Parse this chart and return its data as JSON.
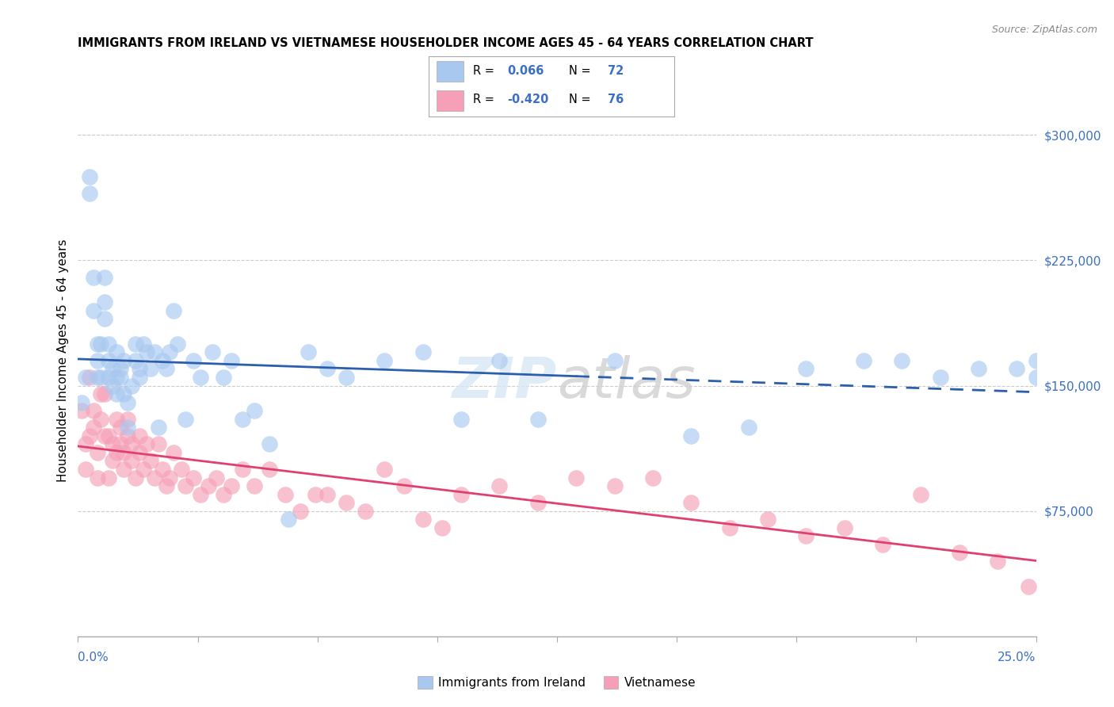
{
  "title": "IMMIGRANTS FROM IRELAND VS VIETNAMESE HOUSEHOLDER INCOME AGES 45 - 64 YEARS CORRELATION CHART",
  "source": "Source: ZipAtlas.com",
  "ylabel": "Householder Income Ages 45 - 64 years",
  "ytick_labels": [
    "$75,000",
    "$150,000",
    "$225,000",
    "$300,000"
  ],
  "ytick_values": [
    75000,
    150000,
    225000,
    300000
  ],
  "ymin": 0,
  "ymax": 330000,
  "xmin": 0.0,
  "xmax": 0.25,
  "ireland_color": "#a8c8f0",
  "irish_line_color": "#2b5fad",
  "vietnamese_color": "#f5a0b8",
  "vietnamese_line_color": "#e04070",
  "ireland_scatter_x": [
    0.001,
    0.002,
    0.003,
    0.003,
    0.004,
    0.004,
    0.005,
    0.005,
    0.005,
    0.006,
    0.006,
    0.007,
    0.007,
    0.007,
    0.008,
    0.008,
    0.008,
    0.009,
    0.009,
    0.01,
    0.01,
    0.01,
    0.011,
    0.011,
    0.012,
    0.012,
    0.013,
    0.013,
    0.014,
    0.015,
    0.015,
    0.016,
    0.016,
    0.017,
    0.018,
    0.019,
    0.02,
    0.021,
    0.022,
    0.023,
    0.024,
    0.025,
    0.026,
    0.028,
    0.03,
    0.032,
    0.035,
    0.038,
    0.04,
    0.043,
    0.046,
    0.05,
    0.055,
    0.06,
    0.065,
    0.07,
    0.08,
    0.09,
    0.1,
    0.11,
    0.12,
    0.14,
    0.16,
    0.175,
    0.19,
    0.205,
    0.215,
    0.225,
    0.235,
    0.245,
    0.25,
    0.25
  ],
  "ireland_scatter_y": [
    140000,
    155000,
    275000,
    265000,
    215000,
    195000,
    175000,
    165000,
    155000,
    175000,
    155000,
    215000,
    200000,
    190000,
    175000,
    165000,
    155000,
    160000,
    150000,
    155000,
    170000,
    145000,
    160000,
    155000,
    165000,
    145000,
    140000,
    125000,
    150000,
    175000,
    165000,
    160000,
    155000,
    175000,
    170000,
    160000,
    170000,
    125000,
    165000,
    160000,
    170000,
    195000,
    175000,
    130000,
    165000,
    155000,
    170000,
    155000,
    165000,
    130000,
    135000,
    115000,
    70000,
    170000,
    160000,
    155000,
    165000,
    170000,
    130000,
    165000,
    130000,
    165000,
    120000,
    125000,
    160000,
    165000,
    165000,
    155000,
    160000,
    160000,
    165000,
    155000
  ],
  "vietnamese_scatter_x": [
    0.001,
    0.002,
    0.002,
    0.003,
    0.003,
    0.004,
    0.004,
    0.005,
    0.005,
    0.006,
    0.006,
    0.007,
    0.007,
    0.008,
    0.008,
    0.009,
    0.009,
    0.01,
    0.01,
    0.011,
    0.011,
    0.012,
    0.012,
    0.013,
    0.013,
    0.014,
    0.014,
    0.015,
    0.016,
    0.016,
    0.017,
    0.018,
    0.019,
    0.02,
    0.021,
    0.022,
    0.023,
    0.024,
    0.025,
    0.027,
    0.028,
    0.03,
    0.032,
    0.034,
    0.036,
    0.038,
    0.04,
    0.043,
    0.046,
    0.05,
    0.054,
    0.058,
    0.062,
    0.065,
    0.07,
    0.075,
    0.08,
    0.085,
    0.09,
    0.095,
    0.1,
    0.11,
    0.12,
    0.13,
    0.14,
    0.15,
    0.16,
    0.17,
    0.18,
    0.19,
    0.2,
    0.21,
    0.22,
    0.23,
    0.24,
    0.248
  ],
  "vietnamese_scatter_y": [
    135000,
    115000,
    100000,
    155000,
    120000,
    135000,
    125000,
    110000,
    95000,
    145000,
    130000,
    145000,
    120000,
    120000,
    95000,
    115000,
    105000,
    130000,
    110000,
    125000,
    115000,
    110000,
    100000,
    130000,
    120000,
    115000,
    105000,
    95000,
    120000,
    110000,
    100000,
    115000,
    105000,
    95000,
    115000,
    100000,
    90000,
    95000,
    110000,
    100000,
    90000,
    95000,
    85000,
    90000,
    95000,
    85000,
    90000,
    100000,
    90000,
    100000,
    85000,
    75000,
    85000,
    85000,
    80000,
    75000,
    100000,
    90000,
    70000,
    65000,
    85000,
    90000,
    80000,
    95000,
    90000,
    95000,
    80000,
    65000,
    70000,
    60000,
    65000,
    55000,
    85000,
    50000,
    45000,
    30000
  ],
  "legend_ireland_label": "Immigrants from Ireland",
  "legend_vietnamese_label": "Vietnamese",
  "watermark_zip": "ZIP",
  "watermark_atlas": "atlas",
  "background_color": "#ffffff",
  "grid_color": "#cccccc",
  "xtick_vals": [
    0.0,
    0.03125,
    0.0625,
    0.09375,
    0.125,
    0.15625,
    0.1875,
    0.21875,
    0.25
  ]
}
